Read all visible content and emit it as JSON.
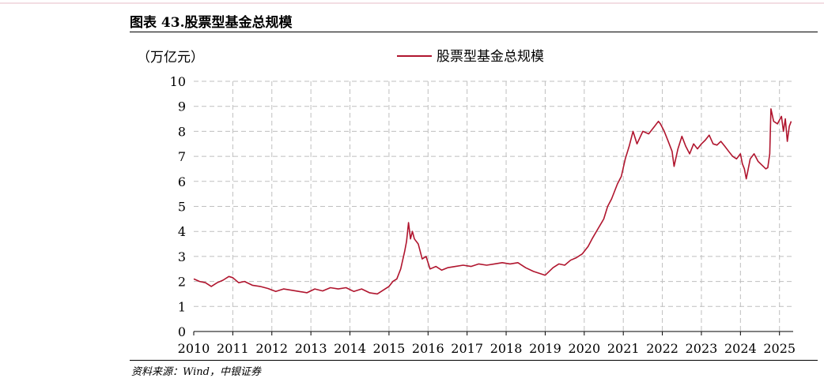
{
  "header": {
    "title": "图表 43.股票型基金总规模"
  },
  "footer": {
    "source": "资料来源：Wind，中银证券"
  },
  "chart_data": {
    "type": "line",
    "title": "",
    "ylabel": "（万亿元）",
    "xlabel": "",
    "ylim": [
      0,
      10
    ],
    "xlim": [
      2010,
      2025.35
    ],
    "yticks": [
      "0",
      "1",
      "2",
      "3",
      "4",
      "5",
      "6",
      "7",
      "8",
      "9",
      "10"
    ],
    "xticks": [
      "2010",
      "2011",
      "2012",
      "2013",
      "2014",
      "2015",
      "2016",
      "2017",
      "2018",
      "2019",
      "2020",
      "2021",
      "2022",
      "2023",
      "2024",
      "2025"
    ],
    "grid": true,
    "legend": "top-center",
    "colors": {
      "series": "#b0152e",
      "grid": "#bfbfbf"
    },
    "series": [
      {
        "name": "股票型基金总规模",
        "x": [
          2010.0,
          2010.15,
          2010.3,
          2010.45,
          2010.6,
          2010.75,
          2010.9,
          2011.0,
          2011.15,
          2011.3,
          2011.5,
          2011.7,
          2011.9,
          2012.1,
          2012.3,
          2012.5,
          2012.7,
          2012.9,
          2013.1,
          2013.3,
          2013.5,
          2013.7,
          2013.9,
          2014.1,
          2014.3,
          2014.5,
          2014.7,
          2014.85,
          2015.0,
          2015.1,
          2015.2,
          2015.3,
          2015.4,
          2015.45,
          2015.5,
          2015.55,
          2015.6,
          2015.65,
          2015.75,
          2015.85,
          2015.95,
          2016.05,
          2016.2,
          2016.35,
          2016.5,
          2016.7,
          2016.9,
          2017.1,
          2017.3,
          2017.5,
          2017.7,
          2017.9,
          2018.1,
          2018.3,
          2018.5,
          2018.7,
          2018.9,
          2019.0,
          2019.1,
          2019.2,
          2019.35,
          2019.5,
          2019.65,
          2019.8,
          2019.95,
          2020.1,
          2020.2,
          2020.35,
          2020.5,
          2020.6,
          2020.7,
          2020.85,
          2020.95,
          2021.05,
          2021.15,
          2021.25,
          2021.35,
          2021.5,
          2021.65,
          2021.8,
          2021.9,
          2021.95,
          2022.05,
          2022.15,
          2022.25,
          2022.3,
          2022.4,
          2022.5,
          2022.6,
          2022.7,
          2022.8,
          2022.9,
          2023.0,
          2023.1,
          2023.2,
          2023.3,
          2023.4,
          2023.5,
          2023.6,
          2023.7,
          2023.8,
          2023.9,
          2024.0,
          2024.05,
          2024.1,
          2024.15,
          2024.25,
          2024.35,
          2024.45,
          2024.55,
          2024.65,
          2024.7,
          2024.75,
          2024.78,
          2024.85,
          2024.95,
          2025.05,
          2025.1,
          2025.15,
          2025.2,
          2025.25,
          2025.3
        ],
        "values": [
          2.1,
          2.0,
          1.95,
          1.8,
          1.95,
          2.05,
          2.2,
          2.15,
          1.95,
          2.0,
          1.85,
          1.8,
          1.72,
          1.6,
          1.7,
          1.65,
          1.6,
          1.55,
          1.7,
          1.62,
          1.75,
          1.7,
          1.75,
          1.6,
          1.7,
          1.55,
          1.5,
          1.65,
          1.8,
          2.0,
          2.1,
          2.5,
          3.2,
          3.6,
          4.35,
          3.7,
          4.0,
          3.7,
          3.5,
          2.9,
          3.0,
          2.5,
          2.6,
          2.45,
          2.55,
          2.6,
          2.65,
          2.6,
          2.7,
          2.65,
          2.7,
          2.75,
          2.7,
          2.75,
          2.55,
          2.4,
          2.3,
          2.25,
          2.4,
          2.55,
          2.7,
          2.65,
          2.85,
          2.95,
          3.1,
          3.4,
          3.7,
          4.1,
          4.5,
          5.0,
          5.3,
          5.9,
          6.2,
          6.9,
          7.4,
          8.0,
          7.5,
          8.0,
          7.9,
          8.2,
          8.4,
          8.3,
          8.0,
          7.6,
          7.2,
          6.6,
          7.3,
          7.8,
          7.4,
          7.1,
          7.5,
          7.3,
          7.5,
          7.65,
          7.85,
          7.5,
          7.45,
          7.6,
          7.4,
          7.2,
          7.0,
          6.9,
          7.1,
          6.7,
          6.5,
          6.1,
          6.9,
          7.1,
          6.8,
          6.65,
          6.5,
          6.55,
          7.1,
          8.9,
          8.4,
          8.3,
          8.6,
          8.0,
          8.5,
          7.6,
          8.2,
          8.4
        ]
      }
    ]
  }
}
